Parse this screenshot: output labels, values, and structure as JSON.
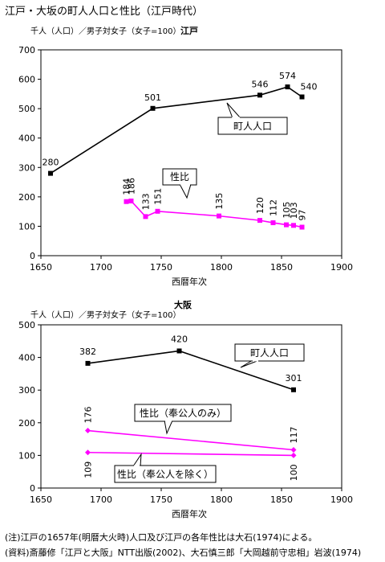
{
  "title": "江戸・大坂の町人人口と性比（江戸時代）",
  "chart_data": [
    {
      "type": "line",
      "title": "江戸",
      "ylabel": "千人（人口）／男子対女子（女子=100）",
      "xlabel": "西暦年次",
      "xlim": [
        1650,
        1900
      ],
      "ylim": [
        0,
        700
      ],
      "xticks": [
        "1650",
        "1700",
        "1750",
        "1800",
        "1850",
        "1900"
      ],
      "yticks": [
        "0",
        "100",
        "200",
        "300",
        "400",
        "500",
        "600",
        "700"
      ],
      "grid": false,
      "series": [
        {
          "name": "町人人口",
          "color": "#000000",
          "marker": "square",
          "x": [
            1658,
            1743,
            1832,
            1855,
            1867
          ],
          "y": [
            280,
            501,
            546,
            574,
            540
          ],
          "labels": [
            "280",
            "501",
            "546",
            "574",
            "540"
          ]
        },
        {
          "name": "性比",
          "color": "#ff00ff",
          "marker": "square",
          "x": [
            1721,
            1725,
            1737,
            1747,
            1798,
            1832,
            1843,
            1854,
            1860,
            1867
          ],
          "y": [
            184,
            186,
            133,
            151,
            135,
            120,
            112,
            105,
            103,
            97
          ],
          "labels": [
            "184",
            "186",
            "133",
            "151",
            "135",
            "120",
            "112",
            "105",
            "103",
            "97"
          ]
        }
      ]
    },
    {
      "type": "line",
      "title": "大阪",
      "ylabel": "千人（人口）／男子対女子（女子=100）",
      "xlabel": "西暦年次",
      "xlim": [
        1650,
        1900
      ],
      "ylim": [
        0,
        500
      ],
      "xticks": [
        "1650",
        "1700",
        "1750",
        "1800",
        "1850",
        "1900"
      ],
      "yticks": [
        "0",
        "100",
        "200",
        "300",
        "400",
        "500"
      ],
      "grid": false,
      "series": [
        {
          "name": "町人人口",
          "color": "#000000",
          "marker": "square",
          "x": [
            1689,
            1765,
            1860
          ],
          "y": [
            382,
            420,
            301
          ],
          "labels": [
            "382",
            "420",
            "301"
          ]
        },
        {
          "name": "性比（奉公人のみ）",
          "color": "#ff00ff",
          "marker": "diamond",
          "x": [
            1689,
            1860
          ],
          "y": [
            176,
            117
          ],
          "labels": [
            "176",
            "117"
          ]
        },
        {
          "name": "性比（奉公人を除く）",
          "color": "#ff00ff",
          "marker": "diamond",
          "x": [
            1689,
            1860
          ],
          "y": [
            109,
            100
          ],
          "labels": [
            "109",
            "100"
          ]
        }
      ]
    }
  ],
  "notes": {
    "note1": "(注)江戸の1657年(明暦大火時)人口及び江戸の各年性比は大石(1974)による。",
    "note2": "(資料)斎藤修「江戸と大阪」NTT出版(2002)、大石慎三郎「大岡越前守忠相」岩波(1974)"
  }
}
